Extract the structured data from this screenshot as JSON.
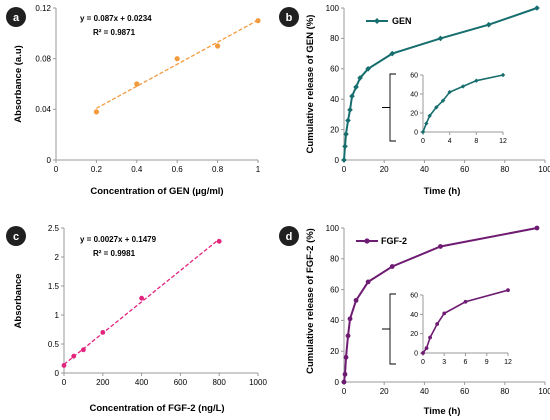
{
  "colors": {
    "panel_a": "#f39a3c",
    "panel_b": "#176e6e",
    "panel_c": "#e2247d",
    "panel_d": "#6e1b72",
    "badge": "#202020"
  },
  "chart_data": [
    {
      "panel": "a",
      "type": "scatter",
      "title": "",
      "xlabel": "Concentration of GEN (µg/ml)",
      "ylabel": "Absorbance (a.u)",
      "xlim": [
        0,
        1
      ],
      "ylim": [
        0,
        0.12
      ],
      "xticks": [
        0,
        0.2,
        0.4,
        0.6,
        0.8,
        1
      ],
      "yticks": [
        0,
        0.04,
        0.08,
        0.12
      ],
      "xtick_labels": [
        "0",
        "0.2",
        "0.4",
        "0.6",
        "0.8",
        "1"
      ],
      "ytick_labels": [
        "0",
        "0.04",
        "0.08",
        "0.12"
      ],
      "x": [
        0.2,
        0.4,
        0.6,
        0.8,
        1.0
      ],
      "y": [
        0.038,
        0.06,
        0.08,
        0.09,
        0.11
      ],
      "trendline": {
        "type": "linear",
        "slope": 0.087,
        "intercept": 0.0234,
        "style": "dashed"
      },
      "equation": "y = 0.087x + 0.0234",
      "r2": "R² = 0.9871",
      "grid": false
    },
    {
      "panel": "b",
      "type": "line",
      "title": "",
      "xlabel": "Time (h)",
      "ylabel": "Cumulative release of GEN (%)",
      "xlim": [
        0,
        100
      ],
      "ylim": [
        0,
        100
      ],
      "xticks": [
        0,
        20,
        40,
        60,
        80,
        100
      ],
      "yticks": [
        0,
        20,
        40,
        60,
        80,
        100
      ],
      "xtick_labels": [
        "0",
        "20",
        "40",
        "60",
        "80",
        "100"
      ],
      "ytick_labels": [
        "0",
        "20",
        "40",
        "60",
        "80",
        "100"
      ],
      "legend": "top-left",
      "series": [
        {
          "name": "GEN",
          "x": [
            0,
            0.5,
            1,
            2,
            3,
            4,
            6,
            8,
            12,
            24,
            48,
            72,
            96
          ],
          "y": [
            0,
            9,
            17,
            26,
            33,
            42,
            48,
            54,
            60,
            70,
            80,
            89,
            100
          ]
        }
      ],
      "inset": {
        "xlim": [
          0,
          12
        ],
        "ylim": [
          0,
          60
        ],
        "xticks": [
          0,
          4,
          8,
          12
        ],
        "yticks": [
          0,
          20,
          40,
          60
        ],
        "xtick_labels": [
          "0",
          "4",
          "8",
          "12"
        ],
        "ytick_labels": [
          "0",
          "20",
          "40",
          "60"
        ],
        "x": [
          0,
          0.5,
          1,
          2,
          3,
          4,
          6,
          8,
          12
        ],
        "y": [
          0,
          9,
          17,
          26,
          33,
          42,
          48,
          54,
          60
        ]
      },
      "grid": false
    },
    {
      "panel": "c",
      "type": "scatter",
      "title": "",
      "xlabel": "Concentration of FGF-2 (ng/L)",
      "ylabel": "Absorbance",
      "xlim": [
        0,
        1000
      ],
      "ylim": [
        0,
        2.5
      ],
      "xticks": [
        0,
        200,
        400,
        600,
        800,
        1000
      ],
      "yticks": [
        0,
        0.5,
        1,
        1.5,
        2,
        2.5
      ],
      "xtick_labels": [
        "0",
        "200",
        "400",
        "600",
        "800",
        "1000"
      ],
      "ytick_labels": [
        "0",
        "0.5",
        "1",
        "1.5",
        "2",
        "2.5"
      ],
      "x": [
        0,
        50,
        100,
        200,
        400,
        800
      ],
      "y": [
        0.13,
        0.29,
        0.4,
        0.7,
        1.29,
        2.27
      ],
      "trendline": {
        "type": "linear",
        "slope": 0.0027,
        "intercept": 0.1479,
        "style": "dashed"
      },
      "equation": "y = 0.0027x + 0.1479",
      "r2": "R² = 0.9981",
      "grid": false
    },
    {
      "panel": "d",
      "type": "line",
      "title": "",
      "xlabel": "Time (h)",
      "ylabel": "Cumulative release of FGF-2 (%)",
      "xlim": [
        0,
        100
      ],
      "ylim": [
        0,
        100
      ],
      "xticks": [
        0,
        20,
        40,
        60,
        80,
        100
      ],
      "yticks": [
        0,
        20,
        40,
        60,
        80,
        100
      ],
      "xtick_labels": [
        "0",
        "20",
        "40",
        "60",
        "80",
        "100"
      ],
      "ytick_labels": [
        "0",
        "20",
        "40",
        "60",
        "80",
        "100"
      ],
      "legend": "top-left",
      "series": [
        {
          "name": "FGF-2",
          "x": [
            0,
            0.5,
            1,
            2,
            3,
            6,
            12,
            24,
            48,
            96
          ],
          "y": [
            0,
            5,
            16,
            30,
            41,
            53,
            65,
            75,
            88,
            100
          ]
        }
      ],
      "inset": {
        "xlim": [
          0,
          12
        ],
        "ylim": [
          0,
          60
        ],
        "xticks": [
          0,
          3,
          6,
          9,
          12
        ],
        "yticks": [
          0,
          20,
          40,
          60
        ],
        "xtick_labels": [
          "0",
          "3",
          "6",
          "9",
          "12"
        ],
        "ytick_labels": [
          "0",
          "20",
          "40",
          "60"
        ],
        "x": [
          0,
          0.5,
          1,
          2,
          3,
          6,
          12
        ],
        "y": [
          0,
          5,
          16,
          30,
          41,
          53,
          65
        ]
      },
      "grid": false
    }
  ]
}
